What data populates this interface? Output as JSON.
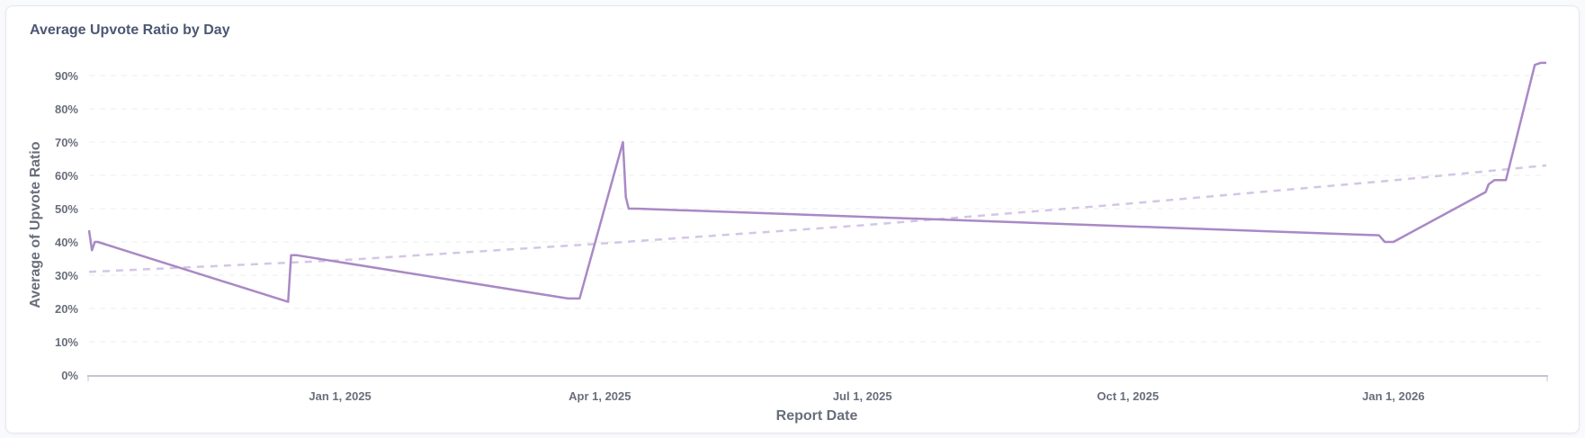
{
  "chart_data": {
    "type": "line",
    "title": "Average Upvote Ratio by Day",
    "xlabel": "Report Date",
    "ylabel": "Average of Upvote Ratio",
    "ylim": [
      0,
      90
    ],
    "xlim": [
      "2024-10-06",
      "2026-02-23"
    ],
    "y_ticks": [
      "0%",
      "10%",
      "20%",
      "30%",
      "40%",
      "50%",
      "60%",
      "70%",
      "80%",
      "90%"
    ],
    "x_ticks": [
      {
        "date": "2025-01-01",
        "label": "Jan 1, 2025"
      },
      {
        "date": "2025-04-01",
        "label": "Apr 1, 2025"
      },
      {
        "date": "2025-07-01",
        "label": "Jul 1, 2025"
      },
      {
        "date": "2025-10-01",
        "label": "Oct 1, 2025"
      },
      {
        "date": "2026-01-01",
        "label": "Jan 1, 2026"
      }
    ],
    "grid": true,
    "series": [
      {
        "name": "Average of Upvote Ratio",
        "color": "#a989c5",
        "x": [
          "2024-10-06",
          "2024-10-07",
          "2024-10-08",
          "2024-10-09",
          "2024-12-14",
          "2024-12-15",
          "2024-12-17",
          "2025-03-21",
          "2025-03-25",
          "2025-04-09",
          "2025-04-10",
          "2025-04-11",
          "2025-04-14",
          "2025-12-27",
          "2025-12-29",
          "2026-01-01",
          "2026-02-02",
          "2026-02-03",
          "2026-02-05",
          "2026-02-09",
          "2026-02-19",
          "2026-02-21",
          "2026-02-23"
        ],
        "values": [
          43.5,
          37.5,
          40,
          40,
          22,
          36,
          36,
          23,
          23,
          70,
          53.5,
          50,
          50,
          42,
          40,
          40,
          55,
          57.3,
          58.6,
          58.6,
          93.2,
          93.8,
          93.8
        ]
      },
      {
        "name": "Trend",
        "color": "#d4c6e6",
        "dashed": true,
        "x": [
          "2024-10-06",
          "2025-01-01",
          "2025-04-01",
          "2025-07-01",
          "2025-10-01",
          "2026-01-01",
          "2026-02-23"
        ],
        "values": [
          31,
          34.5,
          39.5,
          45,
          51.5,
          58.5,
          63
        ]
      }
    ]
  }
}
